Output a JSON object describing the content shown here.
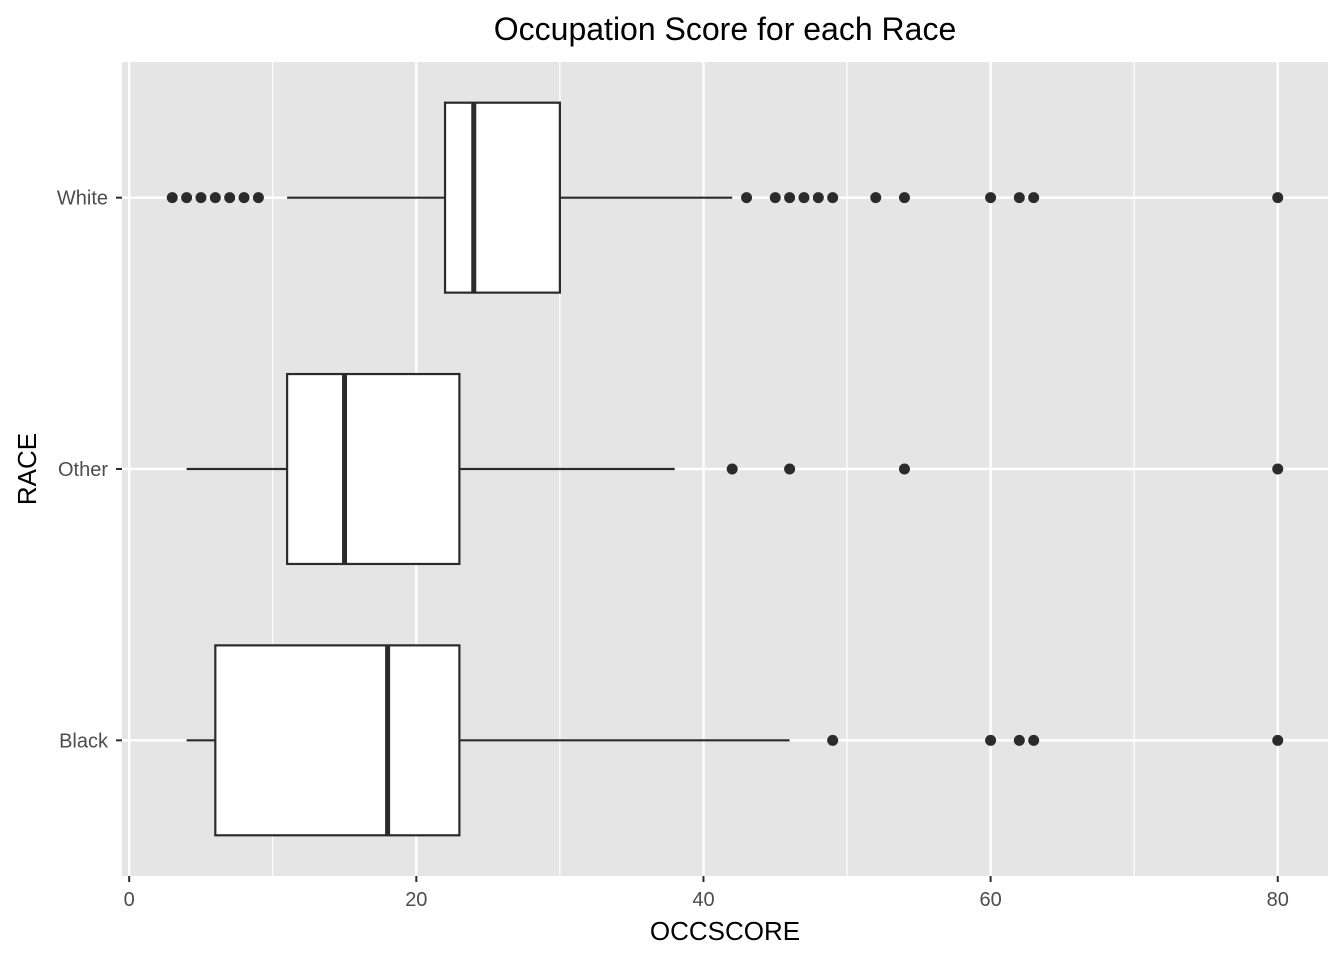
{
  "chart_data": {
    "type": "boxplot",
    "orientation": "horizontal",
    "title": "Occupation Score for each Race",
    "xlabel": "OCCSCORE",
    "ylabel": "RACE",
    "xlim": [
      -0.5,
      83.5
    ],
    "xticks": [
      0,
      20,
      40,
      60,
      80
    ],
    "xtick_labels": [
      "0",
      "20",
      "40",
      "60",
      "80"
    ],
    "grid": true,
    "legend": "none",
    "colors": {
      "panel": "#e5e5e5",
      "grid": "#ffffff",
      "box_fill": "#ffffff",
      "line": "#2b2b2b",
      "outlier": "#2b2b2b",
      "tick_text": "#4d4d4d"
    },
    "categories": [
      "White",
      "Other",
      "Black"
    ],
    "boxes": [
      {
        "category": "White",
        "whisker_low": 11,
        "q1": 22,
        "median": 24,
        "q3": 30,
        "whisker_high": 42,
        "outliers": [
          3,
          4,
          5,
          6,
          7,
          8,
          9,
          43,
          45,
          46,
          47,
          48,
          49,
          52,
          54,
          60,
          62,
          63,
          80
        ]
      },
      {
        "category": "Other",
        "whisker_low": 4,
        "q1": 11,
        "median": 15,
        "q3": 23,
        "whisker_high": 38,
        "outliers": [
          42,
          46,
          54,
          80
        ]
      },
      {
        "category": "Black",
        "whisker_low": 4,
        "q1": 6,
        "median": 18,
        "q3": 23,
        "whisker_high": 46,
        "outliers": [
          49,
          60,
          62,
          63,
          80
        ]
      }
    ]
  }
}
